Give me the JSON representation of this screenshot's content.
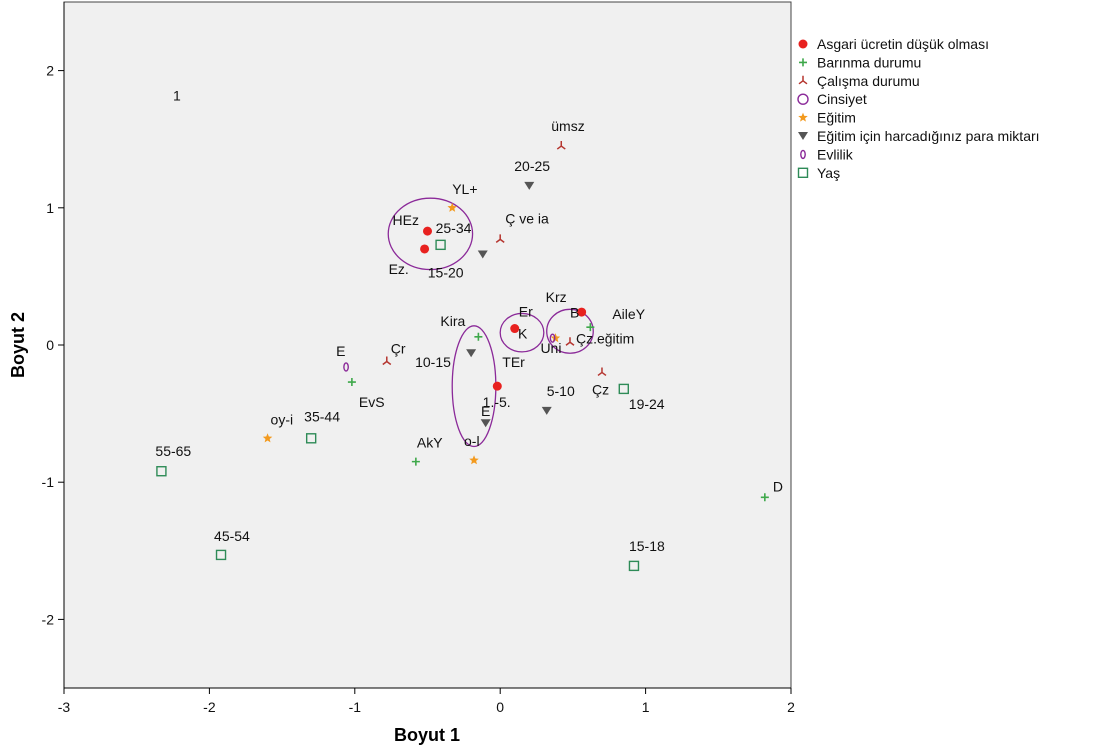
{
  "chart_data": {
    "type": "scatter",
    "title": "",
    "xlabel": "Boyut 1",
    "ylabel": "Boyut 2",
    "xlim": [
      -3,
      2
    ],
    "ylim": [
      -2.5,
      2.5
    ],
    "x_ticks": [
      "-3",
      "-2",
      "-1",
      "0",
      "1",
      "2"
    ],
    "y_ticks": [
      "-2",
      "-1",
      "0",
      "1",
      "2"
    ],
    "x_tick_values": [
      -3,
      -2,
      -1,
      0,
      1,
      2
    ],
    "y_tick_values": [
      -2,
      -1,
      0,
      1,
      2
    ],
    "grid": false,
    "legend_position": "right",
    "plot_background": "#f0f0f0",
    "series": [
      {
        "name": "Asgari ücretin düşük olması",
        "marker": "circle",
        "color": "#e8211f",
        "points": [
          {
            "x": -0.5,
            "y": 0.83,
            "label": "HEz"
          },
          {
            "x": -0.52,
            "y": 0.7,
            "label": "Ez."
          },
          {
            "x": 0.1,
            "y": 0.12,
            "label": "Er"
          },
          {
            "x": 0.56,
            "y": 0.24,
            "label": "Krz"
          },
          {
            "x": -0.02,
            "y": -0.3,
            "label": "TEr"
          }
        ]
      },
      {
        "name": "Barınma durumu",
        "marker": "plus",
        "color": "#3ea84a",
        "points": [
          {
            "x": -1.02,
            "y": -0.27,
            "label": "EvS"
          },
          {
            "x": -0.58,
            "y": -0.85,
            "label": "AkY"
          },
          {
            "x": -0.15,
            "y": 0.06,
            "label": "Kira"
          },
          {
            "x": 1.82,
            "y": -1.11,
            "label": "D"
          },
          {
            "x": 0.62,
            "y": 0.13,
            "label": "AileY"
          }
        ]
      },
      {
        "name": "Çalışma durumu",
        "marker": "tri",
        "color": "#b5352f",
        "points": [
          {
            "x": 0.42,
            "y": 1.45,
            "label": "ümsz"
          },
          {
            "x": -0.78,
            "y": -0.12,
            "label": "Çr"
          },
          {
            "x": 0.48,
            "y": 0.02,
            "label": "Çz.eğitim"
          },
          {
            "x": 0.7,
            "y": -0.2,
            "label": "Çz"
          },
          {
            "x": 0.0,
            "y": 0.77,
            "label": "Ç ve ia"
          }
        ]
      },
      {
        "name": "Cinsiyet",
        "marker": "ellipse",
        "color": "#8b2a99",
        "points": [
          {
            "x": -0.48,
            "y": 0.81,
            "rx": 0.29,
            "ry": 0.26,
            "label": ""
          },
          {
            "x": 0.15,
            "y": 0.09,
            "rx": 0.15,
            "ry": 0.14,
            "label": "K"
          },
          {
            "x": 0.48,
            "y": 0.1,
            "rx": 0.16,
            "ry": 0.16,
            "label": "B"
          },
          {
            "x": -0.18,
            "y": -0.3,
            "rx": 0.15,
            "ry": 0.44,
            "label": "E"
          }
        ]
      },
      {
        "name": "Eğitim",
        "marker": "star",
        "color": "#f39a1e",
        "points": [
          {
            "x": -0.33,
            "y": 1.0,
            "label": "YL+"
          },
          {
            "x": -1.6,
            "y": -0.68,
            "label": "oy-i"
          },
          {
            "x": -0.18,
            "y": -0.84,
            "label": "o-l"
          },
          {
            "x": 0.38,
            "y": 0.05,
            "label": "Uni"
          }
        ]
      },
      {
        "name": "Eğitim için harcadığınız para miktarı",
        "marker": "triangle-down",
        "color": "#555555",
        "points": [
          {
            "x": 0.2,
            "y": 1.16,
            "label": "20-25"
          },
          {
            "x": -0.12,
            "y": 0.66,
            "label": "15-20"
          },
          {
            "x": -0.2,
            "y": -0.06,
            "label": "10-15"
          },
          {
            "x": 0.32,
            "y": -0.48,
            "label": "5-10"
          },
          {
            "x": -0.1,
            "y": -0.57,
            "label": "1.-5."
          }
        ]
      },
      {
        "name": "Evlilik",
        "marker": "oval",
        "color": "#8b2a99",
        "points": [
          {
            "x": -1.06,
            "y": -0.16,
            "label": "E"
          },
          {
            "x": 0.36,
            "y": 0.05,
            "label": ""
          }
        ]
      },
      {
        "name": "Yaş",
        "marker": "square",
        "color": "#2e8b57",
        "points": [
          {
            "x": -0.41,
            "y": 0.73,
            "label": "25-34"
          },
          {
            "x": -1.3,
            "y": -0.68,
            "label": "35-44"
          },
          {
            "x": -2.33,
            "y": -0.92,
            "label": "55-65"
          },
          {
            "x": -1.92,
            "y": -1.53,
            "label": "45-54"
          },
          {
            "x": 0.85,
            "y": -0.32,
            "label": "19-24"
          },
          {
            "x": 0.92,
            "y": -1.61,
            "label": "15-18"
          }
        ]
      }
    ],
    "annotations": [
      {
        "text": "1",
        "x": -2.25,
        "y": 1.82
      }
    ]
  }
}
